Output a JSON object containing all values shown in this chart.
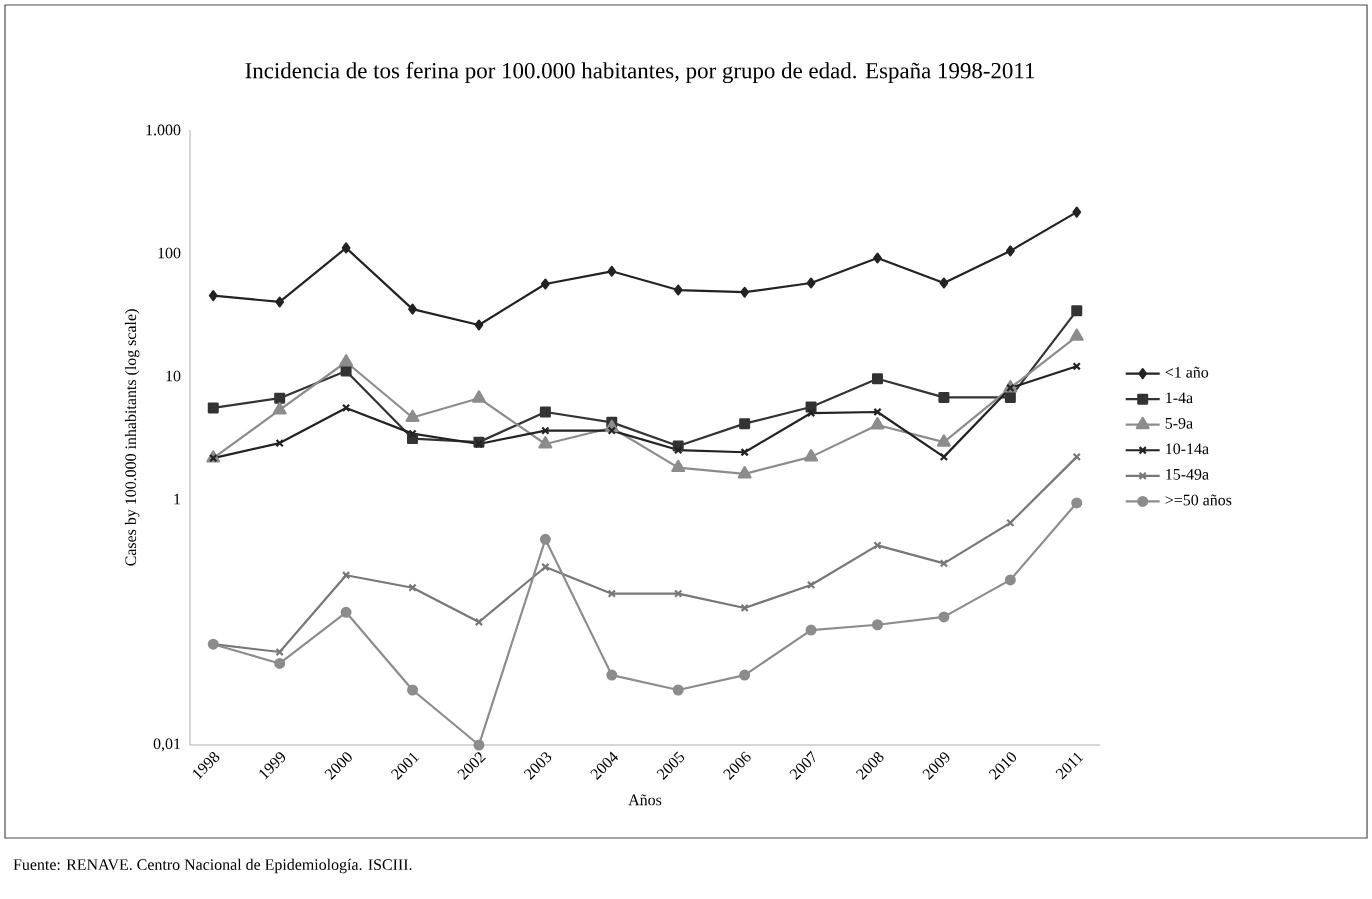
{
  "chart_data": {
    "type": "line",
    "title": "Incidencia de tos ferina por 100.000 habitantes, por grupo de edad. España 1998-2011",
    "xlabel": "Años",
    "ylabel": "Cases by 100.000 inhabitants (log scale)",
    "categories": [
      "1998",
      "1999",
      "2000",
      "2001",
      "2002",
      "2003",
      "2004",
      "2005",
      "2006",
      "2007",
      "2008",
      "2009",
      "2010",
      "2011"
    ],
    "series": [
      {
        "name": "<1 año",
        "color": "#222222",
        "marker": "diamond",
        "values": [
          45,
          40,
          110,
          35,
          26,
          56,
          71,
          50,
          48,
          57,
          91,
          57,
          104,
          215
        ]
      },
      {
        "name": "1-4a",
        "color": "#333333",
        "marker": "square",
        "values": [
          5.5,
          6.6,
          11,
          3.1,
          2.9,
          5.1,
          4.2,
          2.7,
          4.1,
          5.6,
          9.5,
          6.7,
          6.7,
          34
        ]
      },
      {
        "name": "5-9a",
        "color": "#8c8c8c",
        "marker": "triangle",
        "values": [
          2.15,
          5.3,
          13,
          4.6,
          6.6,
          2.8,
          3.8,
          1.8,
          1.6,
          2.2,
          4,
          2.9,
          8,
          21
        ]
      },
      {
        "name": "10-14a",
        "color": "#222222",
        "marker": "cross",
        "values": [
          2.15,
          2.85,
          5.5,
          3.4,
          2.8,
          3.6,
          3.6,
          2.5,
          2.4,
          5,
          5.1,
          2.2,
          8,
          12
        ]
      },
      {
        "name": "15-49a",
        "color": "#777777",
        "marker": "cross",
        "values": [
          0.066,
          0.057,
          0.24,
          0.19,
          0.1,
          0.28,
          0.17,
          0.17,
          0.13,
          0.2,
          0.42,
          0.3,
          0.64,
          2.2
        ]
      },
      {
        "name": ">=50 años",
        "color": "#8c8c8c",
        "marker": "circle",
        "values": [
          0.066,
          0.046,
          0.12,
          0.028,
          0.01,
          0.47,
          0.037,
          0.028,
          0.037,
          0.086,
          0.095,
          0.11,
          0.22,
          0.93
        ]
      }
    ],
    "log": "y",
    "ylim": [
      0.01,
      1000
    ],
    "yticks": [
      {
        "value": 0.01,
        "label": "0,01"
      },
      1,
      10,
      100,
      {
        "value": 1000,
        "label": "1.000"
      }
    ],
    "legend": "right",
    "grid": false,
    "annotations": [
      "Fuente: RENAVE. Centro Nacional de Epidemiología. ISCIII."
    ]
  }
}
